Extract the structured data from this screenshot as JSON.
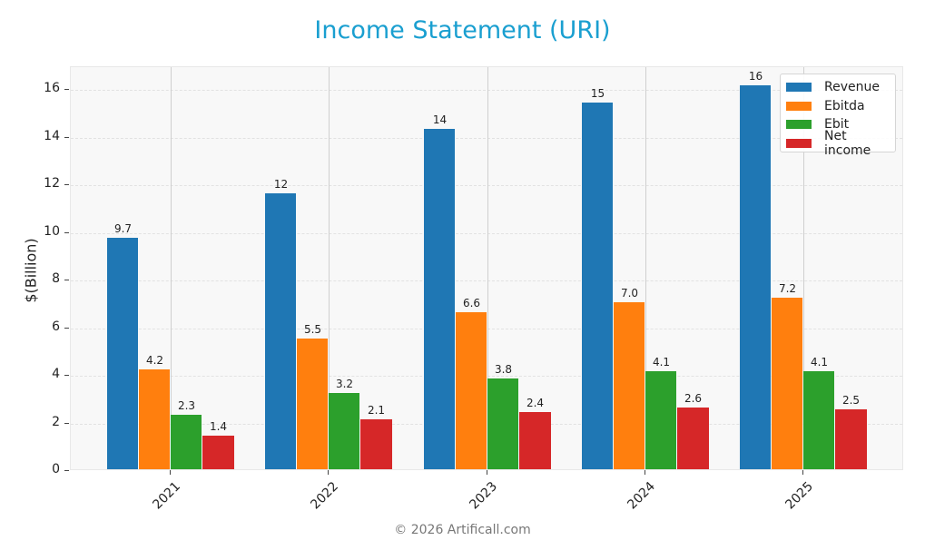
{
  "title": "Income Statement (URI)",
  "footer": "© 2026 Artificall.com",
  "colors": {
    "title": "#1a9fd0",
    "Revenue": "#1f77b4",
    "Ebitda": "#ff7f0e",
    "Ebit": "#2ca02c",
    "Net income": "#d62728"
  },
  "chart_data": {
    "type": "bar",
    "title": "Income Statement (URI)",
    "xlabel": "",
    "ylabel": "$(Billion)",
    "categories": [
      "2021",
      "2022",
      "2023",
      "2024",
      "2025"
    ],
    "series": [
      {
        "name": "Revenue",
        "values": [
          9.7,
          11.6,
          14.3,
          15.4,
          16.1
        ],
        "labels": [
          "9.7",
          "12",
          "14",
          "15",
          "16"
        ]
      },
      {
        "name": "Ebitda",
        "values": [
          4.2,
          5.5,
          6.6,
          7.0,
          7.2
        ],
        "labels": [
          "4.2",
          "5.5",
          "6.6",
          "7.0",
          "7.2"
        ]
      },
      {
        "name": "Ebit",
        "values": [
          2.3,
          3.2,
          3.8,
          4.1,
          4.1
        ],
        "labels": [
          "2.3",
          "3.2",
          "3.8",
          "4.1",
          "4.1"
        ]
      },
      {
        "name": "Net income",
        "values": [
          1.4,
          2.1,
          2.4,
          2.6,
          2.5
        ],
        "labels": [
          "1.4",
          "2.1",
          "2.4",
          "2.6",
          "2.5"
        ]
      }
    ],
    "yticks": [
      "0",
      "2",
      "4",
      "6",
      "8",
      "10",
      "12",
      "14",
      "16"
    ],
    "ylim": [
      0,
      17
    ],
    "grid": true,
    "legend_position": "upper right"
  }
}
